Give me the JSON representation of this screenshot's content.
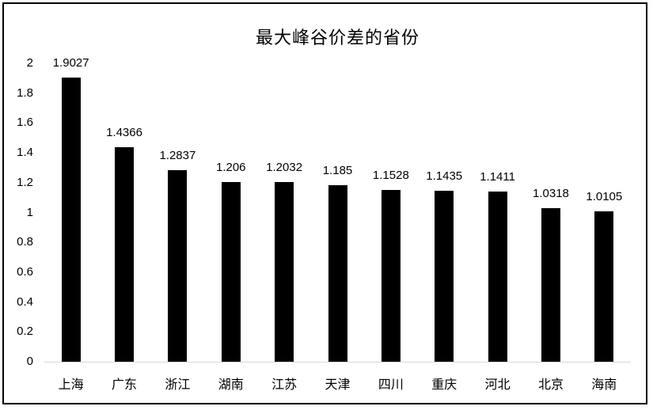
{
  "window": {
    "background": "#ffffff",
    "frame_border_color": "#000000"
  },
  "chart_data": {
    "type": "bar",
    "title": "最大峰谷价差的省份",
    "categories": [
      "上海",
      "广东",
      "浙江",
      "湖南",
      "江苏",
      "天津",
      "四川",
      "重庆",
      "河北",
      "北京",
      "海南"
    ],
    "values": [
      1.9027,
      1.4366,
      1.2837,
      1.206,
      1.2032,
      1.185,
      1.1528,
      1.1435,
      1.1411,
      1.0318,
      1.0105
    ],
    "value_labels": [
      "1.9027",
      "1.4366",
      "1.2837",
      "1.206",
      "1.2032",
      "1.185",
      "1.1528",
      "1.1435",
      "1.1411",
      "1.0318",
      "1.0105"
    ],
    "xlabel": "",
    "ylabel": "",
    "ylim": [
      0,
      2
    ],
    "yticks": [
      0,
      0.2,
      0.4,
      0.6,
      0.8,
      1,
      1.2,
      1.4,
      1.6,
      1.8,
      2
    ],
    "ytick_labels": [
      "0",
      "0.2",
      "0.4",
      "0.6",
      "0.8",
      "1",
      "1.2",
      "1.4",
      "1.6",
      "1.8",
      "2"
    ],
    "grid": false,
    "legend": "none",
    "bar_color": "#000000",
    "axis_line_color": "#d9d9d9",
    "text_color": "#000000"
  }
}
